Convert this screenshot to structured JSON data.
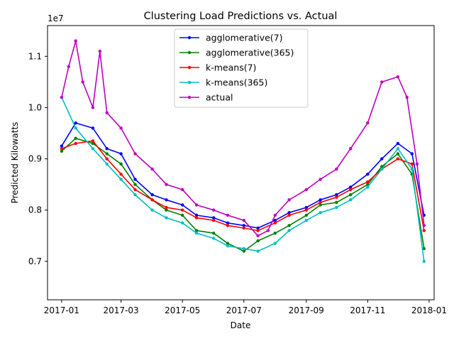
{
  "chart_data": {
    "type": "line",
    "title": "Clustering Load Predictions vs. Actual",
    "xlabel": "Date",
    "ylabel": "Predicted Kilowatts",
    "y_scale_label": "1e7",
    "x_domain": [
      "2016-12-18",
      "2018-01-06"
    ],
    "xlim": [
      "2016-12-18",
      "2018-01-06"
    ],
    "ylim": [
      6.25,
      11.6
    ],
    "x_ticks": [
      {
        "value": "2017-01-01",
        "label": "2017-01"
      },
      {
        "value": "2017-03-01",
        "label": "2017-03"
      },
      {
        "value": "2017-05-01",
        "label": "2017-05"
      },
      {
        "value": "2017-07-01",
        "label": "2017-07"
      },
      {
        "value": "2017-09-01",
        "label": "2017-09"
      },
      {
        "value": "2017-11-01",
        "label": "2017-11"
      },
      {
        "value": "2018-01-01",
        "label": "2018-01"
      }
    ],
    "y_ticks": [
      {
        "value": 7.0,
        "label": "0.7"
      },
      {
        "value": 8.0,
        "label": "0.8"
      },
      {
        "value": 9.0,
        "label": "0.9"
      },
      {
        "value": 10.0,
        "label": "1.0"
      },
      {
        "value": 11.0,
        "label": "1.1"
      }
    ],
    "legend_position": "top-center",
    "grid": false,
    "series": [
      {
        "name": "agglomerative(7)",
        "color": "#0000ff",
        "x": [
          "2017-01-01",
          "2017-01-15",
          "2017-02-01",
          "2017-02-15",
          "2017-03-01",
          "2017-03-15",
          "2017-04-01",
          "2017-04-15",
          "2017-05-01",
          "2017-05-15",
          "2017-06-01",
          "2017-06-15",
          "2017-07-01",
          "2017-07-15",
          "2017-08-01",
          "2017-08-15",
          "2017-09-01",
          "2017-09-15",
          "2017-10-01",
          "2017-10-15",
          "2017-11-01",
          "2017-11-15",
          "2017-12-01",
          "2017-12-15",
          "2017-12-27"
        ],
        "y": [
          9.25,
          9.7,
          9.6,
          9.2,
          9.1,
          8.6,
          8.3,
          8.2,
          8.1,
          7.9,
          7.85,
          7.75,
          7.7,
          7.65,
          7.8,
          7.95,
          8.05,
          8.2,
          8.3,
          8.45,
          8.7,
          9.0,
          9.3,
          9.1,
          7.9
        ]
      },
      {
        "name": "agglomerative(365)",
        "color": "#008000",
        "x": [
          "2017-01-01",
          "2017-01-15",
          "2017-02-01",
          "2017-02-15",
          "2017-03-01",
          "2017-03-15",
          "2017-04-01",
          "2017-04-15",
          "2017-05-01",
          "2017-05-15",
          "2017-06-01",
          "2017-06-15",
          "2017-07-01",
          "2017-07-15",
          "2017-08-01",
          "2017-08-15",
          "2017-09-01",
          "2017-09-15",
          "2017-10-01",
          "2017-10-15",
          "2017-11-01",
          "2017-11-15",
          "2017-12-01",
          "2017-12-15",
          "2017-12-27"
        ],
        "y": [
          9.15,
          9.4,
          9.3,
          9.1,
          8.9,
          8.5,
          8.2,
          8.0,
          7.9,
          7.6,
          7.55,
          7.35,
          7.2,
          7.4,
          7.55,
          7.7,
          7.9,
          8.1,
          8.15,
          8.3,
          8.5,
          8.85,
          9.1,
          8.7,
          7.25
        ]
      },
      {
        "name": "k-means(7)",
        "color": "#ff0000",
        "x": [
          "2017-01-01",
          "2017-01-15",
          "2017-02-01",
          "2017-02-15",
          "2017-03-01",
          "2017-03-15",
          "2017-04-01",
          "2017-04-15",
          "2017-05-01",
          "2017-05-15",
          "2017-06-01",
          "2017-06-15",
          "2017-07-01",
          "2017-07-15",
          "2017-08-01",
          "2017-08-15",
          "2017-09-01",
          "2017-09-15",
          "2017-10-01",
          "2017-10-15",
          "2017-11-01",
          "2017-11-15",
          "2017-12-01",
          "2017-12-15",
          "2017-12-27"
        ],
        "y": [
          9.2,
          9.3,
          9.35,
          9.0,
          8.7,
          8.4,
          8.2,
          8.05,
          8.0,
          7.85,
          7.8,
          7.7,
          7.65,
          7.6,
          7.75,
          7.9,
          8.0,
          8.15,
          8.25,
          8.4,
          8.55,
          8.8,
          9.0,
          8.9,
          7.6
        ]
      },
      {
        "name": "k-means(365)",
        "color": "#00bfbf",
        "x": [
          "2017-01-01",
          "2017-01-15",
          "2017-02-01",
          "2017-02-15",
          "2017-03-01",
          "2017-03-15",
          "2017-04-01",
          "2017-04-15",
          "2017-05-01",
          "2017-05-15",
          "2017-06-01",
          "2017-06-15",
          "2017-07-01",
          "2017-07-15",
          "2017-08-01",
          "2017-08-15",
          "2017-09-01",
          "2017-09-15",
          "2017-10-01",
          "2017-10-15",
          "2017-11-01",
          "2017-11-15",
          "2017-12-01",
          "2017-12-15",
          "2017-12-27"
        ],
        "y": [
          10.2,
          9.6,
          9.2,
          8.9,
          8.6,
          8.3,
          8.0,
          7.85,
          7.75,
          7.55,
          7.45,
          7.3,
          7.25,
          7.2,
          7.35,
          7.6,
          7.8,
          7.95,
          8.05,
          8.2,
          8.45,
          8.8,
          9.2,
          8.8,
          7.0
        ]
      },
      {
        "name": "actual",
        "color": "#bf00bf",
        "x": [
          "2017-01-01",
          "2017-01-08",
          "2017-01-15",
          "2017-01-22",
          "2017-02-01",
          "2017-02-08",
          "2017-02-15",
          "2017-03-01",
          "2017-03-15",
          "2017-04-01",
          "2017-04-15",
          "2017-05-01",
          "2017-05-15",
          "2017-06-01",
          "2017-06-15",
          "2017-07-01",
          "2017-07-15",
          "2017-07-25",
          "2017-08-01",
          "2017-08-15",
          "2017-09-01",
          "2017-09-15",
          "2017-10-01",
          "2017-10-15",
          "2017-11-01",
          "2017-11-15",
          "2017-12-01",
          "2017-12-10",
          "2017-12-20",
          "2017-12-27"
        ],
        "y": [
          10.2,
          10.8,
          11.3,
          10.5,
          10.0,
          11.1,
          9.9,
          9.6,
          9.1,
          8.8,
          8.5,
          8.4,
          8.1,
          8.0,
          7.9,
          7.8,
          7.5,
          7.6,
          7.9,
          8.2,
          8.4,
          8.6,
          8.8,
          9.2,
          9.7,
          10.5,
          10.6,
          10.2,
          8.9,
          7.7
        ]
      }
    ]
  }
}
